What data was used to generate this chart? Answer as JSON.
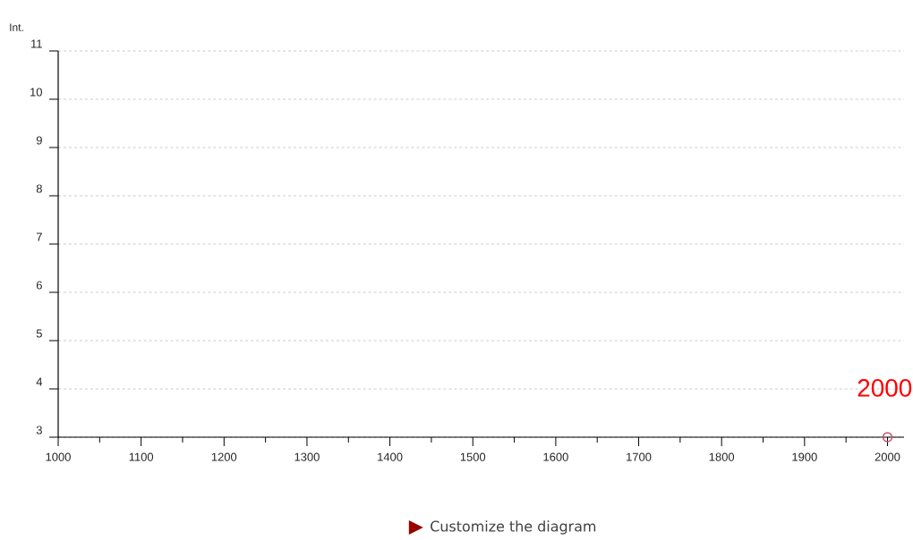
{
  "chart_data": {
    "type": "scatter",
    "ylabel": "Int.",
    "x": [
      2000
    ],
    "values": [
      3
    ],
    "color": "#c0506a",
    "marker": "circle",
    "xlim": [
      1000,
      2020
    ],
    "ylim": [
      3,
      11
    ],
    "xticks": [
      1000,
      1100,
      1200,
      1300,
      1400,
      1500,
      1600,
      1700,
      1800,
      1900,
      2000
    ],
    "yticks": [
      3,
      4,
      5,
      6,
      7,
      8,
      9,
      10,
      11
    ],
    "grid": "y",
    "annotations": [
      {
        "text": "2000",
        "x": 2000,
        "y": 3
      },
      "Customize the diagram"
    ]
  }
}
